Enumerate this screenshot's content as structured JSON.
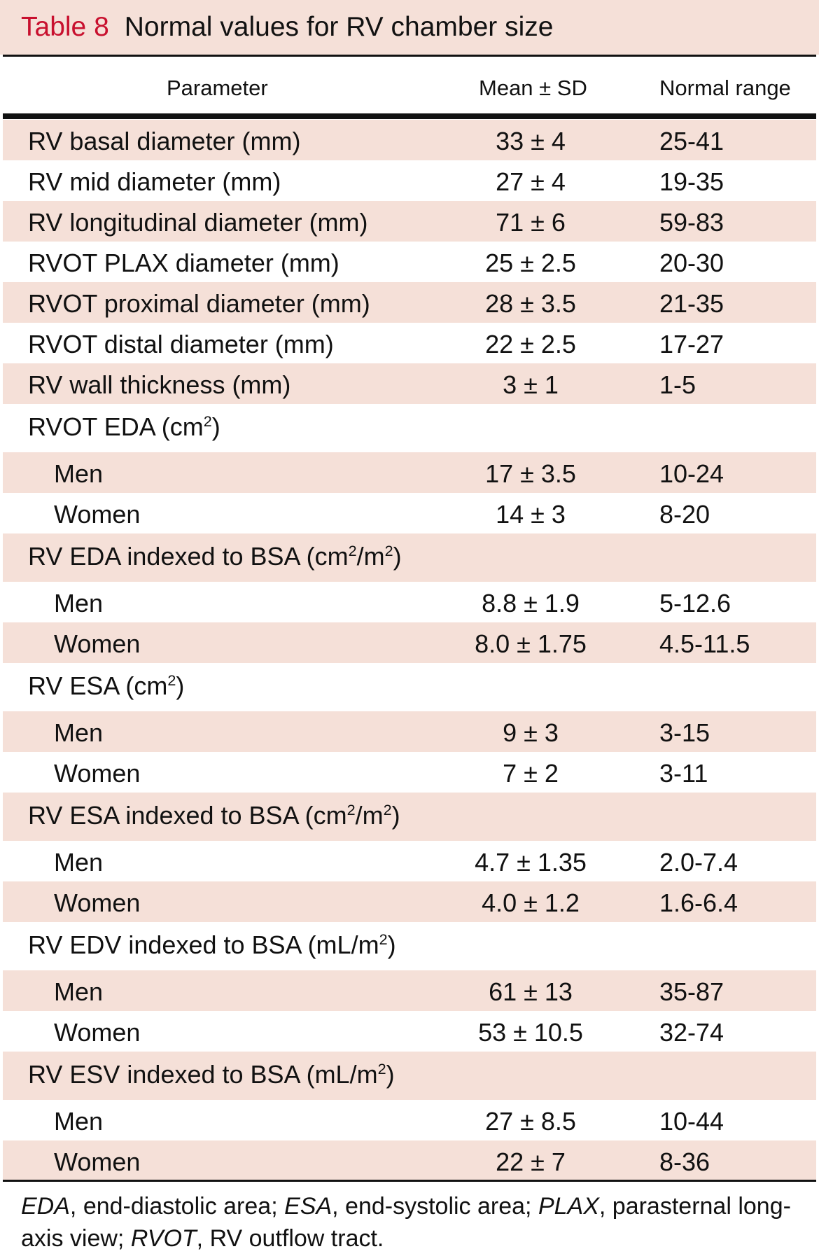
{
  "title": {
    "number": "Table 8",
    "text": "Normal values for RV chamber size"
  },
  "columns": {
    "parameter": "Parameter",
    "mean_sd": "Mean ± SD",
    "normal_range": "Normal range"
  },
  "rows": [
    {
      "kind": "data",
      "param": "RV basal diameter (mm)",
      "mean": "33 ± 4",
      "range": "25-41",
      "shaded": true
    },
    {
      "kind": "data",
      "param": "RV mid diameter (mm)",
      "mean": "27 ± 4",
      "range": "19-35",
      "shaded": false
    },
    {
      "kind": "data",
      "param": "RV longitudinal diameter (mm)",
      "mean": "71 ± 6",
      "range": "59-83",
      "shaded": true
    },
    {
      "kind": "data",
      "param": "RVOT PLAX diameter (mm)",
      "mean": "25 ± 2.5",
      "range": "20-30",
      "shaded": false
    },
    {
      "kind": "data",
      "param": "RVOT proximal diameter (mm)",
      "mean": "28 ± 3.5",
      "range": "21-35",
      "shaded": true
    },
    {
      "kind": "data",
      "param": "RVOT distal diameter (mm)",
      "mean": "22 ± 2.5",
      "range": "17-27",
      "shaded": false
    },
    {
      "kind": "data",
      "param": "RV wall thickness (mm)",
      "mean": "3 ± 1",
      "range": "1-5",
      "shaded": true
    },
    {
      "kind": "group",
      "param": "RVOT EDA (cm²)",
      "shaded": false
    },
    {
      "kind": "data",
      "sub": true,
      "param": "Men",
      "mean": "17 ± 3.5",
      "range": "10-24",
      "shaded": true
    },
    {
      "kind": "data",
      "sub": true,
      "param": "Women",
      "mean": "14 ± 3",
      "range": "8-20",
      "shaded": false
    },
    {
      "kind": "group",
      "param": "RV EDA indexed to BSA (cm²/m²)",
      "shaded": true
    },
    {
      "kind": "data",
      "sub": true,
      "param": "Men",
      "mean": "8.8 ± 1.9",
      "range": "5-12.6",
      "shaded": false
    },
    {
      "kind": "data",
      "sub": true,
      "param": "Women",
      "mean": "8.0 ± 1.75",
      "range": "4.5-11.5",
      "shaded": true
    },
    {
      "kind": "group",
      "param": "RV ESA (cm²)",
      "shaded": false
    },
    {
      "kind": "data",
      "sub": true,
      "param": "Men",
      "mean": "9 ± 3",
      "range": "3-15",
      "shaded": true
    },
    {
      "kind": "data",
      "sub": true,
      "param": "Women",
      "mean": "7 ± 2",
      "range": "3-11",
      "shaded": false
    },
    {
      "kind": "group",
      "param": "RV ESA indexed to BSA (cm²/m²)",
      "shaded": true
    },
    {
      "kind": "data",
      "sub": true,
      "param": "Men",
      "mean": "4.7 ± 1.35",
      "range": "2.0-7.4",
      "shaded": false
    },
    {
      "kind": "data",
      "sub": true,
      "param": "Women",
      "mean": "4.0 ± 1.2",
      "range": "1.6-6.4",
      "shaded": true
    },
    {
      "kind": "group",
      "param": "RV EDV indexed to BSA (mL/m²)",
      "shaded": false
    },
    {
      "kind": "data",
      "sub": true,
      "param": "Men",
      "mean": "61 ± 13",
      "range": "35-87",
      "shaded": true
    },
    {
      "kind": "data",
      "sub": true,
      "param": "Women",
      "mean": "53 ± 10.5",
      "range": "32-74",
      "shaded": false
    },
    {
      "kind": "group",
      "param": "RV ESV indexed to BSA (mL/m²)",
      "shaded": true
    },
    {
      "kind": "data",
      "sub": true,
      "param": "Men",
      "mean": "27 ± 8.5",
      "range": "10-44",
      "shaded": false
    },
    {
      "kind": "data",
      "sub": true,
      "param": "Women",
      "mean": "22 ± 7",
      "range": "8-36",
      "shaded": true
    }
  ],
  "footnote": [
    {
      "abbr": "EDA",
      "def": ", end-diastolic area; "
    },
    {
      "abbr": "ESA",
      "def": ", end-systolic area; "
    },
    {
      "abbr": "PLAX",
      "def": ", parasternal long-axis view; "
    },
    {
      "abbr": "RVOT",
      "def": ", RV outflow tract."
    }
  ]
}
